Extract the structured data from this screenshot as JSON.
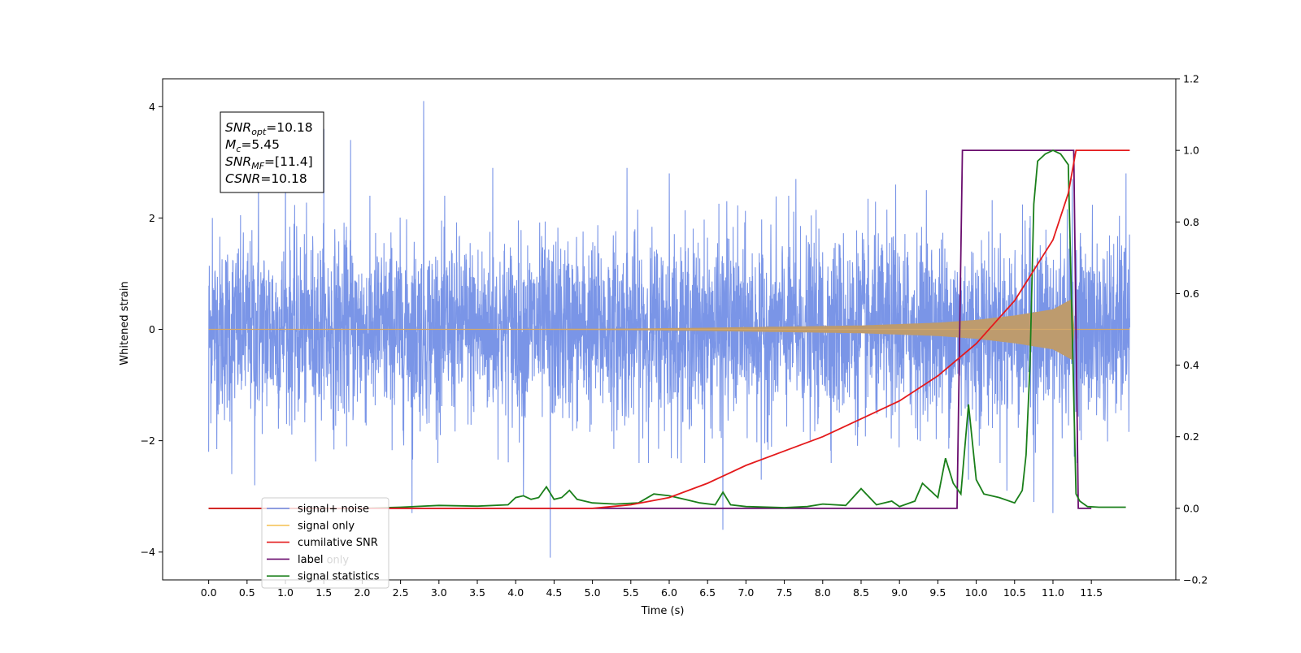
{
  "chart_data": {
    "type": "line",
    "xlabel": "Time (s)",
    "ylabel_left": "Whitened strain",
    "ylabel_right": "",
    "xlim": [
      -0.6,
      12.6
    ],
    "ylim_left": [
      -4.5,
      4.5
    ],
    "ylim_right": [
      -0.2,
      1.2
    ],
    "x_ticks": [
      "0.0",
      "0.5",
      "1.0",
      "1.5",
      "2.0",
      "2.5",
      "3.0",
      "3.5",
      "4.0",
      "4.5",
      "5.0",
      "5.5",
      "6.0",
      "6.5",
      "7.0",
      "7.5",
      "8.0",
      "8.5",
      "9.0",
      "9.5",
      "10.0",
      "10.5",
      "11.0",
      "11.5"
    ],
    "y_ticks_left": [
      "-4",
      "-2",
      "0",
      "2",
      "4"
    ],
    "y_ticks_right": [
      "-0.2",
      "0.0",
      "0.2",
      "0.4",
      "0.6",
      "0.8",
      "1.0",
      "1.2"
    ],
    "annotation_lines": [
      {
        "sym": "SNR",
        "sub": "opt",
        "rest": "=10.18"
      },
      {
        "sym": "M",
        "sub": "c",
        "rest": "=5.45"
      },
      {
        "sym": "SNR",
        "sub": "MF",
        "rest": "=[11.4]"
      },
      {
        "sym": "CSNR",
        "sub": "",
        "rest": "=10.18"
      }
    ],
    "legend_position": "lower-left",
    "legend": [
      {
        "label": "signal+ noise",
        "color": "#6c8ae4"
      },
      {
        "label": "signal only",
        "color": "#f5c45c"
      },
      {
        "label": "cumilative SNR",
        "color": "#e41a1c"
      },
      {
        "label": "label",
        "color": "#6a0d6e"
      },
      {
        "label": "label only",
        "color": "#9ecae1"
      },
      {
        "label": "signal statistics",
        "color": "#1a7f1a"
      }
    ],
    "series": [
      {
        "name": "signal+ noise",
        "axis": "left",
        "color": "#6c8ae4",
        "description": "whitened noisy strain, approximately unit variance noise",
        "x_range": [
          0.0,
          12.0
        ],
        "peaks_upper": [
          [
            0.05,
            2.0
          ],
          [
            0.3,
            2.6
          ],
          [
            0.65,
            2.7
          ],
          [
            1.0,
            3.0
          ],
          [
            1.5,
            3.6
          ],
          [
            1.85,
            3.4
          ],
          [
            2.65,
            3.0
          ],
          [
            2.8,
            4.1
          ],
          [
            3.7,
            2.9
          ],
          [
            5.45,
            2.9
          ],
          [
            6.0,
            2.8
          ],
          [
            6.75,
            2.3
          ],
          [
            7.65,
            2.7
          ],
          [
            8.95,
            2.6
          ],
          [
            9.35,
            2.5
          ],
          [
            11.25,
            2.7
          ],
          [
            11.95,
            2.8
          ]
        ],
        "peaks_lower": [
          [
            0.0,
            -2.2
          ],
          [
            0.3,
            -2.6
          ],
          [
            0.6,
            -2.8
          ],
          [
            2.65,
            -3.3
          ],
          [
            4.1,
            -3.0
          ],
          [
            4.45,
            -4.1
          ],
          [
            6.7,
            -3.6
          ],
          [
            7.2,
            -2.7
          ],
          [
            9.9,
            -2.7
          ],
          [
            10.4,
            -2.9
          ],
          [
            10.75,
            -3.1
          ],
          [
            11.0,
            -3.3
          ]
        ]
      },
      {
        "name": "signal only",
        "axis": "left",
        "color": "#f5c45c",
        "description": "chirp signal, amplitude envelope growing until merger",
        "envelope": {
          "x": [
            0.0,
            4.0,
            5.5,
            6.5,
            7.5,
            8.5,
            9.5,
            10.0,
            10.5,
            11.0,
            11.25,
            11.28,
            12.0
          ],
          "amp": [
            0.0,
            0.005,
            0.015,
            0.03,
            0.05,
            0.07,
            0.12,
            0.17,
            0.25,
            0.36,
            0.55,
            0.0,
            0.0
          ]
        }
      },
      {
        "name": "cumilative SNR",
        "axis": "right",
        "color": "#e41a1c",
        "x": [
          0.0,
          5.0,
          5.5,
          6.0,
          6.5,
          7.0,
          7.5,
          8.0,
          8.5,
          9.0,
          9.5,
          10.0,
          10.5,
          11.0,
          11.2,
          11.3,
          12.0
        ],
        "values": [
          0.0,
          0.0,
          0.01,
          0.03,
          0.07,
          0.12,
          0.16,
          0.2,
          0.25,
          0.3,
          0.37,
          0.46,
          0.58,
          0.75,
          0.88,
          1.0,
          1.0
        ]
      },
      {
        "name": "label",
        "axis": "right",
        "color": "#6a0d6e",
        "x": [
          0.0,
          9.75,
          9.82,
          11.27,
          11.33,
          11.5
        ],
        "values": [
          0.0,
          0.0,
          1.0,
          1.0,
          0.0,
          0.0
        ]
      },
      {
        "name": "signal statistics",
        "axis": "right",
        "color": "#1a7f1a",
        "x": [
          0.0,
          2.0,
          2.5,
          3.0,
          3.5,
          3.9,
          4.0,
          4.1,
          4.2,
          4.3,
          4.4,
          4.5,
          4.6,
          4.7,
          4.8,
          5.0,
          5.3,
          5.6,
          5.8,
          6.0,
          6.2,
          6.4,
          6.6,
          6.7,
          6.8,
          7.0,
          7.5,
          7.8,
          8.0,
          8.3,
          8.5,
          8.7,
          8.9,
          9.0,
          9.2,
          9.3,
          9.5,
          9.6,
          9.7,
          9.8,
          9.9,
          10.0,
          10.1,
          10.3,
          10.5,
          10.6,
          10.65,
          10.7,
          10.75,
          10.8,
          10.85,
          10.9,
          11.0,
          11.1,
          11.2,
          11.25,
          11.3,
          11.35,
          11.45,
          11.6,
          11.95
        ],
        "values": [
          0.0,
          0.0,
          0.003,
          0.008,
          0.006,
          0.01,
          0.03,
          0.035,
          0.025,
          0.03,
          0.06,
          0.025,
          0.03,
          0.05,
          0.025,
          0.015,
          0.012,
          0.015,
          0.04,
          0.035,
          0.025,
          0.015,
          0.01,
          0.045,
          0.01,
          0.005,
          0.002,
          0.005,
          0.012,
          0.008,
          0.055,
          0.01,
          0.02,
          0.005,
          0.02,
          0.07,
          0.03,
          0.14,
          0.07,
          0.04,
          0.29,
          0.08,
          0.04,
          0.03,
          0.015,
          0.05,
          0.15,
          0.4,
          0.85,
          0.97,
          0.98,
          0.99,
          1.0,
          0.99,
          0.96,
          0.5,
          0.04,
          0.02,
          0.005,
          0.003,
          0.003
        ]
      }
    ]
  }
}
